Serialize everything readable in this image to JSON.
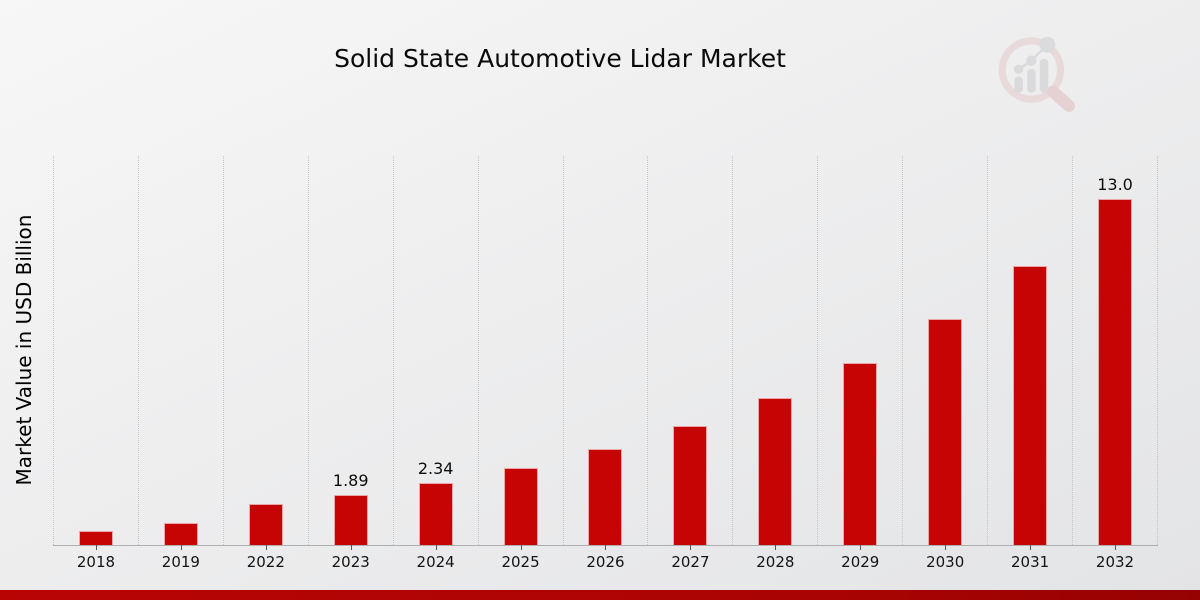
{
  "page": {
    "logo_name": "market-research-future-watermark"
  },
  "chart_data": {
    "type": "bar",
    "title": "Solid State Automotive Lidar Market",
    "xlabel": "",
    "ylabel": "Market Value in USD Billion",
    "categories": [
      "2018",
      "2019",
      "2022",
      "2023",
      "2024",
      "2025",
      "2026",
      "2027",
      "2028",
      "2029",
      "2030",
      "2031",
      "2032"
    ],
    "values": [
      0.52,
      0.82,
      1.53,
      1.89,
      2.34,
      2.9,
      3.59,
      4.45,
      5.52,
      6.84,
      8.48,
      10.49,
      13.0
    ],
    "data_labels": [
      "",
      "",
      "",
      "1.89",
      "2.34",
      "",
      "",
      "",
      "",
      "",
      "",
      "",
      "13.0"
    ],
    "ylim": [
      0,
      14.6
    ],
    "grid": "vertical-dotted",
    "legend": "none",
    "bar_color": "#c70404",
    "gridline_color": "#c5c5c7",
    "accent_bar_color": "#b30404"
  }
}
